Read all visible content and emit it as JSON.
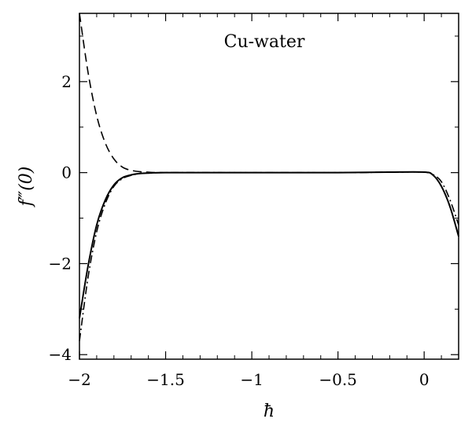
{
  "chart_data": {
    "type": "line",
    "title": "Cu-water",
    "xlabel": "ħ",
    "ylabel": "f‴(0)",
    "xlim": [
      -2,
      0.2
    ],
    "ylim": [
      -4.1,
      3.5
    ],
    "grid": false,
    "x_ticks": [
      {
        "value": -2,
        "label": "−2"
      },
      {
        "value": -1.5,
        "label": "−1.5"
      },
      {
        "value": -1,
        "label": "−1"
      },
      {
        "value": -0.5,
        "label": "−0.5"
      },
      {
        "value": 0,
        "label": "0"
      }
    ],
    "y_ticks": [
      {
        "value": 2,
        "label": "2"
      },
      {
        "value": 0,
        "label": "0"
      },
      {
        "value": -2,
        "label": "−2"
      },
      {
        "value": -4,
        "label": "−4"
      }
    ],
    "series": [
      {
        "style": "solid",
        "x": [
          -2.0,
          -1.95,
          -1.9,
          -1.85,
          -1.8,
          -1.75,
          -1.7,
          -1.65,
          -1.6,
          -1.5,
          -1.0,
          -0.5,
          -0.2,
          0.0,
          0.05,
          0.1,
          0.15,
          0.2
        ],
        "y": [
          -3.2,
          -2.05,
          -1.15,
          -0.6,
          -0.27,
          -0.11,
          -0.05,
          -0.02,
          -0.01,
          0.0,
          0.0,
          0.0,
          0.01,
          0.01,
          -0.05,
          -0.3,
          -0.75,
          -1.4
        ]
      },
      {
        "style": "dashed",
        "x": [
          -2.0,
          -1.95,
          -1.9,
          -1.85,
          -1.8,
          -1.75,
          -1.7,
          -1.65,
          -1.6,
          -1.5,
          -1.0,
          -0.5,
          -0.2,
          0.0,
          0.05,
          0.1,
          0.15,
          0.2
        ],
        "y": [
          3.5,
          2.2,
          1.25,
          0.65,
          0.3,
          0.12,
          0.05,
          0.02,
          0.01,
          0.0,
          0.0,
          0.0,
          0.01,
          0.01,
          -0.05,
          -0.3,
          -0.75,
          -1.4
        ]
      },
      {
        "style": "dash-dot",
        "x": [
          -2.0,
          -1.95,
          -1.9,
          -1.85,
          -1.8,
          -1.75,
          -1.7,
          -1.65,
          -1.6,
          -1.5,
          -1.0,
          -0.5,
          -0.2,
          0.0,
          0.05,
          0.1,
          0.15,
          0.2
        ],
        "y": [
          -3.7,
          -2.3,
          -1.3,
          -0.68,
          -0.3,
          -0.13,
          -0.06,
          -0.02,
          -0.01,
          0.0,
          0.0,
          0.0,
          0.01,
          0.01,
          -0.04,
          -0.2,
          -0.6,
          -1.15
        ]
      }
    ]
  }
}
